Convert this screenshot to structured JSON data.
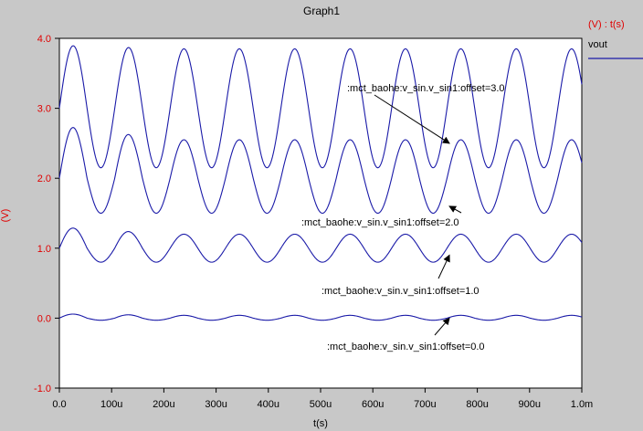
{
  "colors": {
    "window_bg": "#c8c8c8",
    "plot_bg": "#ffffff",
    "trace": "#1a1aa8",
    "y_axis_text": "#e00000",
    "x_axis_text": "#000000"
  },
  "legend": {
    "header": "(V) : t(s)",
    "entries": [
      {
        "name": "vout",
        "color": "#1a1aa8"
      }
    ]
  },
  "chart_data": {
    "type": "line",
    "title": "Graph1",
    "xlabel": "t(s)",
    "ylabel": "(V)",
    "xlim": [
      0,
      0.001
    ],
    "ylim": [
      -1.0,
      4.0
    ],
    "x_ticks": [
      "0.0",
      "100u",
      "200u",
      "300u",
      "400u",
      "500u",
      "600u",
      "700u",
      "800u",
      "900u",
      "1.0m"
    ],
    "y_ticks": [
      "-1.0",
      "0.0",
      "1.0",
      "2.0",
      "3.0",
      "4.0"
    ],
    "grid": false,
    "legend_position": "top-right",
    "series": [
      {
        "name": "vout",
        "offset": 3.0,
        "period_s": 0.000106,
        "x_start": 0,
        "x_end": 0.001,
        "y_at_start": 3.0,
        "y_first_peak": 3.9,
        "y_trough": 2.15,
        "y_peak_late": 3.85
      },
      {
        "name": "vout",
        "offset": 2.0,
        "period_s": 0.000106,
        "x_start": 0,
        "x_end": 0.001,
        "y_at_start": 2.0,
        "y_first_peak": 2.75,
        "y_trough": 1.5,
        "y_peak_late": 2.55
      },
      {
        "name": "vout",
        "offset": 1.0,
        "period_s": 0.000106,
        "x_start": 0,
        "x_end": 0.001,
        "y_at_start": 1.0,
        "y_first_peak": 1.3,
        "y_trough": 0.8,
        "y_peak_late": 1.2
      },
      {
        "name": "vout",
        "offset": 0.0,
        "period_s": 0.000106,
        "x_start": 0,
        "x_end": 0.001,
        "y_at_start": 0.0,
        "y_first_peak": 0.06,
        "y_trough": -0.03,
        "y_peak_late": 0.04
      }
    ],
    "annotations": [
      {
        "text": ":mct_baohe:v_sin.v_sin1:offset=3.0",
        "target_x": 0.00082,
        "target_y": 2.5
      },
      {
        "text": ":mct_baohe:v_sin.v_sin1:offset=2.0",
        "target_x": 0.00082,
        "target_y": 1.6
      },
      {
        "text": ":mct_baohe:v_sin.v_sin1:offset=1.0",
        "target_x": 0.00082,
        "target_y": 0.9
      },
      {
        "text": ":mct_baohe:v_sin.v_sin1:offset=0.0",
        "target_x": 0.00082,
        "target_y": 0.0
      }
    ]
  }
}
